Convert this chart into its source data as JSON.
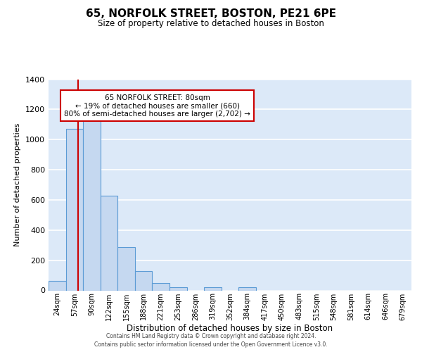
{
  "title": "65, NORFOLK STREET, BOSTON, PE21 6PE",
  "subtitle": "Size of property relative to detached houses in Boston",
  "xlabel": "Distribution of detached houses by size in Boston",
  "ylabel": "Number of detached properties",
  "bar_labels": [
    "24sqm",
    "57sqm",
    "90sqm",
    "122sqm",
    "155sqm",
    "188sqm",
    "221sqm",
    "253sqm",
    "286sqm",
    "319sqm",
    "352sqm",
    "384sqm",
    "417sqm",
    "450sqm",
    "483sqm",
    "515sqm",
    "548sqm",
    "581sqm",
    "614sqm",
    "646sqm",
    "679sqm"
  ],
  "bar_values": [
    65,
    1070,
    1160,
    630,
    285,
    130,
    48,
    22,
    0,
    22,
    0,
    22,
    0,
    0,
    0,
    0,
    0,
    0,
    0,
    0,
    0
  ],
  "bar_color": "#c5d8f0",
  "bar_edge_color": "#5b9bd5",
  "vline_x": 1.7,
  "vline_color": "#cc0000",
  "ylim": [
    0,
    1400
  ],
  "yticks": [
    0,
    200,
    400,
    600,
    800,
    1000,
    1200,
    1400
  ],
  "annotation_title": "65 NORFOLK STREET: 80sqm",
  "annotation_line1": "← 19% of detached houses are smaller (660)",
  "annotation_line2": "80% of semi-detached houses are larger (2,702) →",
  "annotation_box_color": "#ffffff",
  "annotation_box_edge": "#cc0000",
  "footer1": "Contains HM Land Registry data © Crown copyright and database right 2024.",
  "footer2": "Contains public sector information licensed under the Open Government Licence v3.0.",
  "bg_color": "#dce9f8",
  "fig_bg_color": "#ffffff",
  "grid_color": "#ffffff"
}
